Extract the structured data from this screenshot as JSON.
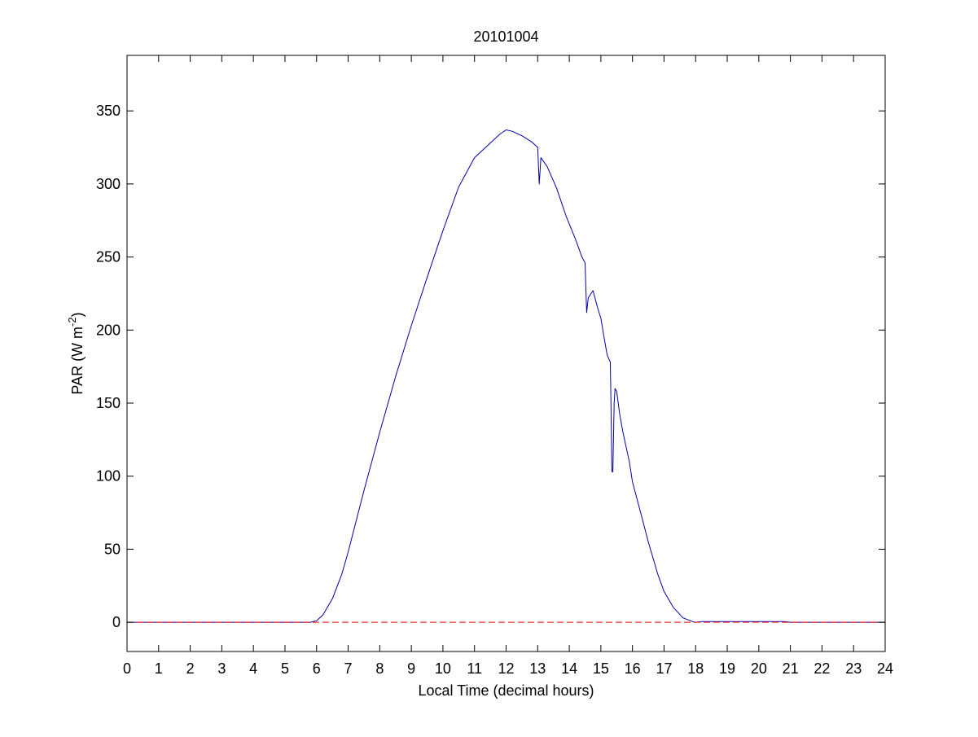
{
  "chart_data": {
    "type": "line",
    "title": "20101004",
    "xlabel": "Local Time (decimal hours)",
    "ylabel": {
      "base": "PAR (W m",
      "superscript": "-2",
      "close": ")"
    },
    "xlim": [
      0,
      24
    ],
    "ylim": [
      -20,
      388
    ],
    "xticks": [
      "0",
      "1",
      "2",
      "3",
      "4",
      "5",
      "6",
      "7",
      "8",
      "9",
      "10",
      "11",
      "12",
      "13",
      "14",
      "15",
      "16",
      "17",
      "18",
      "19",
      "20",
      "21",
      "22",
      "23",
      "24"
    ],
    "yticks": [
      "0",
      "50",
      "100",
      "150",
      "200",
      "250",
      "300",
      "350"
    ],
    "grid": false,
    "legend": "none",
    "series": [
      {
        "style": "solid",
        "color": "#0000a8",
        "x": [
          0,
          5.8,
          6.0,
          6.2,
          6.5,
          6.8,
          7.0,
          7.5,
          8.0,
          8.5,
          9.0,
          9.5,
          10.0,
          10.5,
          11.0,
          11.5,
          11.8,
          12.0,
          12.2,
          12.5,
          12.8,
          13.0,
          13.05,
          13.1,
          13.3,
          13.6,
          13.9,
          14.2,
          14.4,
          14.5,
          14.55,
          14.6,
          14.75,
          14.9,
          15.0,
          15.1,
          15.2,
          15.3,
          15.35,
          15.38,
          15.42,
          15.45,
          15.5,
          15.6,
          15.7,
          15.9,
          16.0,
          16.2,
          16.5,
          16.8,
          17.0,
          17.3,
          17.6,
          17.9,
          18.0,
          18.2,
          19.0,
          20.0,
          20.8,
          21.0,
          21.5,
          22.0,
          24.0
        ],
        "y": [
          0,
          0,
          1,
          5,
          16,
          33,
          48,
          90,
          130,
          168,
          203,
          236,
          268,
          298,
          318,
          328,
          334,
          337,
          336,
          333,
          329,
          325,
          300,
          318,
          312,
          297,
          278,
          262,
          250,
          246,
          212,
          222,
          227,
          215,
          208,
          195,
          183,
          178,
          103,
          103,
          150,
          160,
          158,
          142,
          130,
          110,
          96,
          80,
          55,
          33,
          21,
          10,
          3,
          0.5,
          0,
          0.5,
          0.5,
          0.5,
          0.5,
          0,
          0,
          0,
          0
        ]
      },
      {
        "style": "dashed",
        "color": "#ff0000",
        "x": [
          0,
          24
        ],
        "y": [
          0,
          0
        ]
      }
    ]
  }
}
